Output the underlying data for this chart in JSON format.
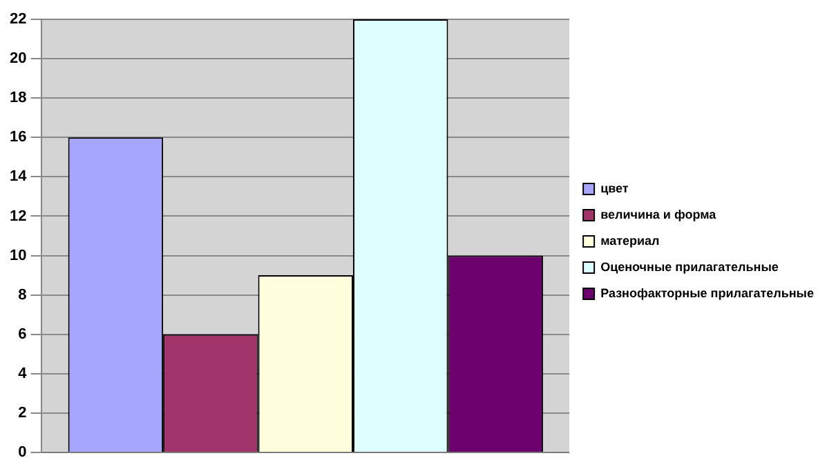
{
  "chart_data": {
    "type": "bar",
    "categories": [
      null
    ],
    "series": [
      {
        "name": "цвет",
        "color": "#a6a6ff",
        "values": [
          16
        ]
      },
      {
        "name": "величина и форма",
        "color": "#a2346c",
        "values": [
          6
        ]
      },
      {
        "name": "материал",
        "color": "#ffffdd",
        "values": [
          9
        ]
      },
      {
        "name": "Оценочные прилагательные",
        "color": "#ddffff",
        "values": [
          22
        ]
      },
      {
        "name": "Разнофакторные прилагательные",
        "color": "#6c006c",
        "values": [
          10
        ]
      }
    ],
    "ylim": [
      0,
      22
    ],
    "yticks": [
      0,
      2,
      4,
      6,
      8,
      10,
      12,
      14,
      16,
      18,
      20,
      22
    ],
    "grid": "y",
    "legend": "right"
  }
}
